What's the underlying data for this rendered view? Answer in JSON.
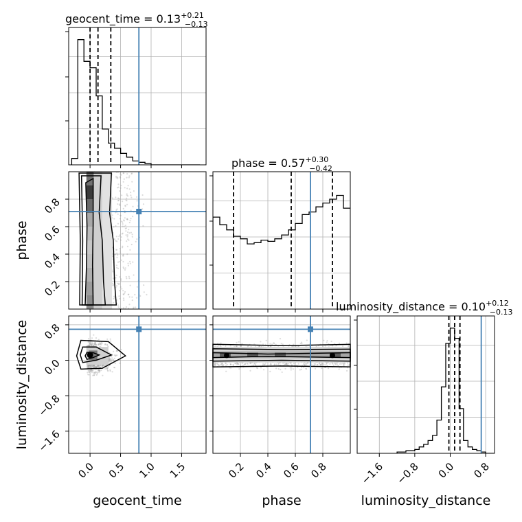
{
  "chart_data": {
    "type": "corner",
    "colors": {
      "truth": "#4682b4",
      "hist": "#000000",
      "grid": "#b0b0b0",
      "points": "#9a9a9a"
    },
    "parameters": [
      {
        "name": "geocent_time",
        "median": "0.13",
        "plus": "+0.21",
        "minus": "−0.13",
        "truth": 0.8,
        "quantiles": [
          0.0,
          0.13,
          0.34
        ],
        "range": [
          -0.35,
          1.9
        ],
        "ticks": [
          0.0,
          0.5,
          1.0,
          1.5
        ],
        "tick_labels": [
          "0.0",
          "0.5",
          "1.0",
          "1.5"
        ]
      },
      {
        "name": "phase",
        "median": "0.57",
        "plus": "+0.30",
        "minus": "−0.42",
        "truth": 0.71,
        "quantiles": [
          0.15,
          0.57,
          0.87
        ],
        "range": [
          0.0,
          1.0
        ],
        "ticks": [
          0.2,
          0.4,
          0.6,
          0.8
        ],
        "tick_labels": [
          "0.2",
          "0.4",
          "0.6",
          "0.8"
        ]
      },
      {
        "name": "luminosity_distance",
        "median": "0.10",
        "plus": "+0.12",
        "minus": "−0.13",
        "truth": 0.7,
        "quantiles": [
          -0.03,
          0.1,
          0.22
        ],
        "range": [
          -2.1,
          1.0
        ],
        "ticks": [
          -1.6,
          -0.8,
          0.0,
          0.8
        ],
        "tick_labels": [
          "−1.6",
          "−0.8",
          "0.0",
          "0.8"
        ]
      }
    ],
    "histograms": [
      {
        "param": "geocent_time",
        "edges_start": -0.3,
        "bin_width": 0.1,
        "values": [
          0.05,
          0.98,
          0.81,
          0.76,
          0.54,
          0.28,
          0.17,
          0.13,
          0.09,
          0.06,
          0.03,
          0.02,
          0.01,
          0.0,
          0.0,
          0.0,
          0.0,
          0.0,
          0.0,
          0.0,
          0.0
        ]
      },
      {
        "param": "phase",
        "edges_start": 0.0,
        "bin_width": 0.05,
        "values": [
          0.72,
          0.66,
          0.62,
          0.57,
          0.55,
          0.51,
          0.52,
          0.54,
          0.53,
          0.55,
          0.58,
          0.62,
          0.67,
          0.74,
          0.76,
          0.8,
          0.83,
          0.86,
          0.89,
          0.79
        ]
      },
      {
        "param": "luminosity_distance",
        "edges_start": -1.2,
        "bin_width": 0.1,
        "values": [
          0.01,
          0.01,
          0.02,
          0.02,
          0.03,
          0.05,
          0.07,
          0.1,
          0.14,
          0.26,
          0.52,
          0.86,
          0.98,
          0.9,
          0.35,
          0.1,
          0.05,
          0.03,
          0.02,
          0.01,
          0.0,
          0.0
        ]
      }
    ],
    "panels": {
      "labels": {
        "phase": "phase",
        "luminosity_distance": "luminosity_distance",
        "geocent_time": "geocent_time"
      }
    }
  }
}
